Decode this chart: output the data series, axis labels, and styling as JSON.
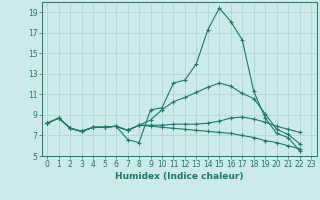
{
  "xlabel": "Humidex (Indice chaleur)",
  "xlim": [
    -0.5,
    23.5
  ],
  "ylim": [
    5,
    20
  ],
  "yticks": [
    5,
    7,
    9,
    11,
    13,
    15,
    17,
    19
  ],
  "xticks": [
    0,
    1,
    2,
    3,
    4,
    5,
    6,
    7,
    8,
    9,
    10,
    11,
    12,
    13,
    14,
    15,
    16,
    17,
    18,
    19,
    20,
    21,
    22,
    23
  ],
  "bg_color": "#cceae7",
  "grid_color": "#b0d8d4",
  "line_color": "#1a7a6e",
  "lines": [
    [
      8.2,
      8.7,
      7.7,
      7.4,
      7.8,
      7.8,
      7.9,
      6.6,
      6.3,
      9.5,
      9.7,
      12.1,
      12.4,
      14.0,
      17.3,
      19.4,
      18.1,
      16.3,
      11.3,
      8.7,
      7.2,
      6.8,
      5.5
    ],
    [
      8.2,
      8.7,
      7.7,
      7.4,
      7.8,
      7.8,
      7.9,
      7.5,
      8.0,
      8.5,
      9.5,
      10.3,
      10.7,
      11.2,
      11.7,
      12.1,
      11.8,
      11.1,
      10.6,
      9.1,
      7.6,
      7.1,
      6.2
    ],
    [
      8.2,
      8.7,
      7.7,
      7.4,
      7.8,
      7.8,
      7.9,
      7.5,
      8.0,
      8.0,
      8.0,
      8.1,
      8.1,
      8.1,
      8.2,
      8.4,
      8.7,
      8.8,
      8.6,
      8.3,
      7.9,
      7.6,
      7.3
    ],
    [
      8.2,
      8.7,
      7.7,
      7.4,
      7.8,
      7.8,
      7.9,
      7.5,
      8.0,
      7.9,
      7.8,
      7.7,
      7.6,
      7.5,
      7.4,
      7.3,
      7.2,
      7.0,
      6.8,
      6.5,
      6.3,
      6.0,
      5.7
    ]
  ]
}
